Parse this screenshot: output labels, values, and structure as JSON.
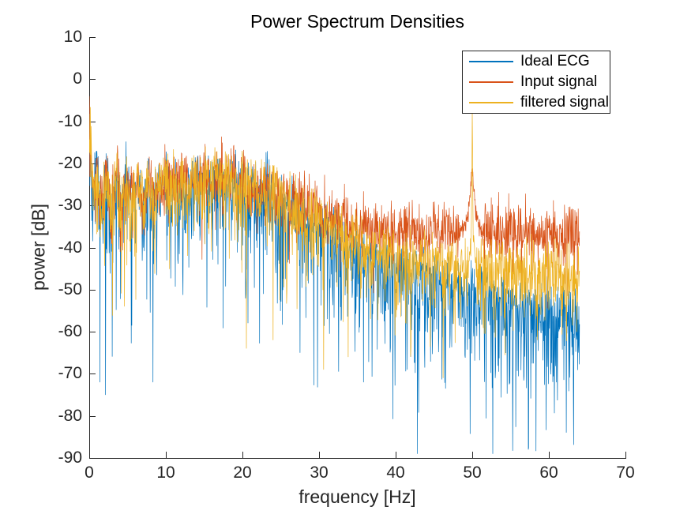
{
  "figure": {
    "background": "#ffffff",
    "axis_color": "#262626",
    "title_color": "#000000"
  },
  "chart_data": {
    "type": "line",
    "title": "Power Spectrum Densities",
    "xlabel": "frequency [Hz]",
    "ylabel": "power [dB]",
    "xlim": [
      0,
      70
    ],
    "ylim": [
      -90,
      10
    ],
    "x_ticks": [
      0,
      10,
      20,
      30,
      40,
      50,
      60,
      70
    ],
    "y_ticks": [
      10,
      0,
      -10,
      -20,
      -30,
      -40,
      -50,
      -60,
      -70,
      -80,
      -90
    ],
    "grid": false,
    "box": false,
    "legend": {
      "position": "northeast",
      "entries": [
        "Ideal ECG",
        "Input signal",
        "filtered signal"
      ]
    },
    "freq_range_hz": [
      0,
      64
    ],
    "points_per_series": 1600,
    "series": [
      {
        "name": "Ideal ECG",
        "color": "#0072BD",
        "seed": 42,
        "noise_up_db": 1.0,
        "noise_down_db": 1.6,
        "min_db": -89,
        "trend": [
          [
            0,
            -14
          ],
          [
            0.5,
            -30
          ],
          [
            1,
            -24
          ],
          [
            1.6,
            -33
          ],
          [
            2.2,
            -24
          ],
          [
            2.9,
            -34
          ],
          [
            3.5,
            -23
          ],
          [
            4.2,
            -33
          ],
          [
            4.8,
            -24
          ],
          [
            5.5,
            -32
          ],
          [
            6.2,
            -26
          ],
          [
            7,
            -31
          ],
          [
            7.8,
            -25.5
          ],
          [
            8.6,
            -30
          ],
          [
            9.4,
            -26
          ],
          [
            10.5,
            -28
          ],
          [
            12,
            -26.5
          ],
          [
            14,
            -26
          ],
          [
            16,
            -26
          ],
          [
            18,
            -26.5
          ],
          [
            20,
            -27
          ],
          [
            22,
            -28.5
          ],
          [
            24,
            -30
          ],
          [
            26,
            -32
          ],
          [
            28,
            -34.5
          ],
          [
            30,
            -37
          ],
          [
            32,
            -39.5
          ],
          [
            34,
            -41.5
          ],
          [
            36,
            -43
          ],
          [
            38,
            -44.5
          ],
          [
            40,
            -46
          ],
          [
            42,
            -47
          ],
          [
            44,
            -48.5
          ],
          [
            46,
            -50
          ],
          [
            48,
            -51
          ],
          [
            50,
            -52
          ],
          [
            52,
            -53.5
          ],
          [
            54,
            -54.5
          ],
          [
            56,
            -55.5
          ],
          [
            58,
            -56.5
          ],
          [
            60,
            -57
          ],
          [
            62,
            -57.5
          ],
          [
            64,
            -58
          ]
        ],
        "peaks": [],
        "deep_dips": [
          [
            1.4,
            -72
          ],
          [
            2.1,
            -75
          ],
          [
            8.3,
            -72
          ],
          [
            27.5,
            -65
          ],
          [
            35.8,
            -72
          ],
          [
            41.5,
            -69
          ],
          [
            46.5,
            -73.5
          ],
          [
            53,
            -71
          ],
          [
            57.3,
            -88
          ],
          [
            61,
            -72
          ]
        ]
      },
      {
        "name": "Input signal",
        "color": "#D95319",
        "seed": 7,
        "noise_up_db": 1.0,
        "noise_down_db": 0.55,
        "min_db": -60,
        "trend": [
          [
            0,
            -13
          ],
          [
            0.5,
            -29
          ],
          [
            1,
            -23.5
          ],
          [
            1.6,
            -32
          ],
          [
            2.2,
            -23.5
          ],
          [
            2.9,
            -33
          ],
          [
            3.5,
            -22.5
          ],
          [
            4.2,
            -32
          ],
          [
            4.8,
            -23.5
          ],
          [
            5.5,
            -31
          ],
          [
            6.2,
            -25
          ],
          [
            7,
            -30
          ],
          [
            7.8,
            -24.5
          ],
          [
            8.6,
            -29
          ],
          [
            9.4,
            -25
          ],
          [
            10.5,
            -26.5
          ],
          [
            12,
            -25.5
          ],
          [
            14,
            -25
          ],
          [
            16,
            -24.8
          ],
          [
            18,
            -25
          ],
          [
            20,
            -25.5
          ],
          [
            22,
            -27
          ],
          [
            24,
            -28.5
          ],
          [
            26,
            -30
          ],
          [
            28,
            -31.5
          ],
          [
            30,
            -33
          ],
          [
            32,
            -34.5
          ],
          [
            34,
            -35.5
          ],
          [
            36,
            -36.5
          ],
          [
            38,
            -37
          ],
          [
            40,
            -37.3
          ],
          [
            42,
            -37.5
          ],
          [
            44,
            -37.8
          ],
          [
            46,
            -38
          ],
          [
            48,
            -37.8
          ],
          [
            50,
            -37.5
          ],
          [
            52,
            -37.8
          ],
          [
            54,
            -38
          ],
          [
            56,
            -38
          ],
          [
            58,
            -38
          ],
          [
            60,
            -38
          ],
          [
            62,
            -38.2
          ],
          [
            64,
            -38.5
          ]
        ],
        "peaks": [
          {
            "f": 50,
            "amp": 10,
            "w": 0.35
          },
          {
            "f": 50,
            "amp": 5,
            "w": 1.2
          }
        ],
        "deep_dips": []
      },
      {
        "name": "filtered signal",
        "color": "#EDB120",
        "seed": 99,
        "noise_up_db": 1.0,
        "noise_down_db": 1.0,
        "min_db": -71,
        "trend": [
          [
            0,
            -12
          ],
          [
            0.5,
            -29
          ],
          [
            1,
            -23.5
          ],
          [
            1.6,
            -32.5
          ],
          [
            2.2,
            -24
          ],
          [
            2.9,
            -33.5
          ],
          [
            3.5,
            -23
          ],
          [
            4.2,
            -32.5
          ],
          [
            4.8,
            -24
          ],
          [
            5.5,
            -31.5
          ],
          [
            6.2,
            -25.5
          ],
          [
            7,
            -30.5
          ],
          [
            7.8,
            -25
          ],
          [
            8.6,
            -29.5
          ],
          [
            9.4,
            -25.5
          ],
          [
            10.5,
            -27
          ],
          [
            12,
            -26
          ],
          [
            14,
            -25.5
          ],
          [
            16,
            -25.3
          ],
          [
            18,
            -25.5
          ],
          [
            20,
            -26
          ],
          [
            22,
            -27.5
          ],
          [
            24,
            -29
          ],
          [
            26,
            -31
          ],
          [
            28,
            -33
          ],
          [
            30,
            -35.5
          ],
          [
            32,
            -37.5
          ],
          [
            34,
            -39.5
          ],
          [
            36,
            -41
          ],
          [
            38,
            -42.5
          ],
          [
            40,
            -43.5
          ],
          [
            42,
            -44.5
          ],
          [
            44,
            -45
          ],
          [
            46,
            -45.5
          ],
          [
            48,
            -45.8
          ],
          [
            50,
            -46
          ],
          [
            52,
            -46.2
          ],
          [
            54,
            -46.5
          ],
          [
            56,
            -46.8
          ],
          [
            58,
            -47
          ],
          [
            60,
            -47.2
          ],
          [
            62,
            -47.5
          ],
          [
            64,
            -48
          ]
        ],
        "peaks": [
          {
            "f": 50,
            "amp": 28,
            "w": 0.07
          },
          {
            "f": 50,
            "amp": 10,
            "w": 0.35
          }
        ],
        "deep_dips": [
          [
            4.6,
            -54
          ],
          [
            20.5,
            -64
          ],
          [
            24,
            -62
          ],
          [
            30.6,
            -69
          ],
          [
            33.8,
            -66
          ],
          [
            46.2,
            -71
          ],
          [
            58.5,
            -62
          ]
        ]
      }
    ]
  }
}
